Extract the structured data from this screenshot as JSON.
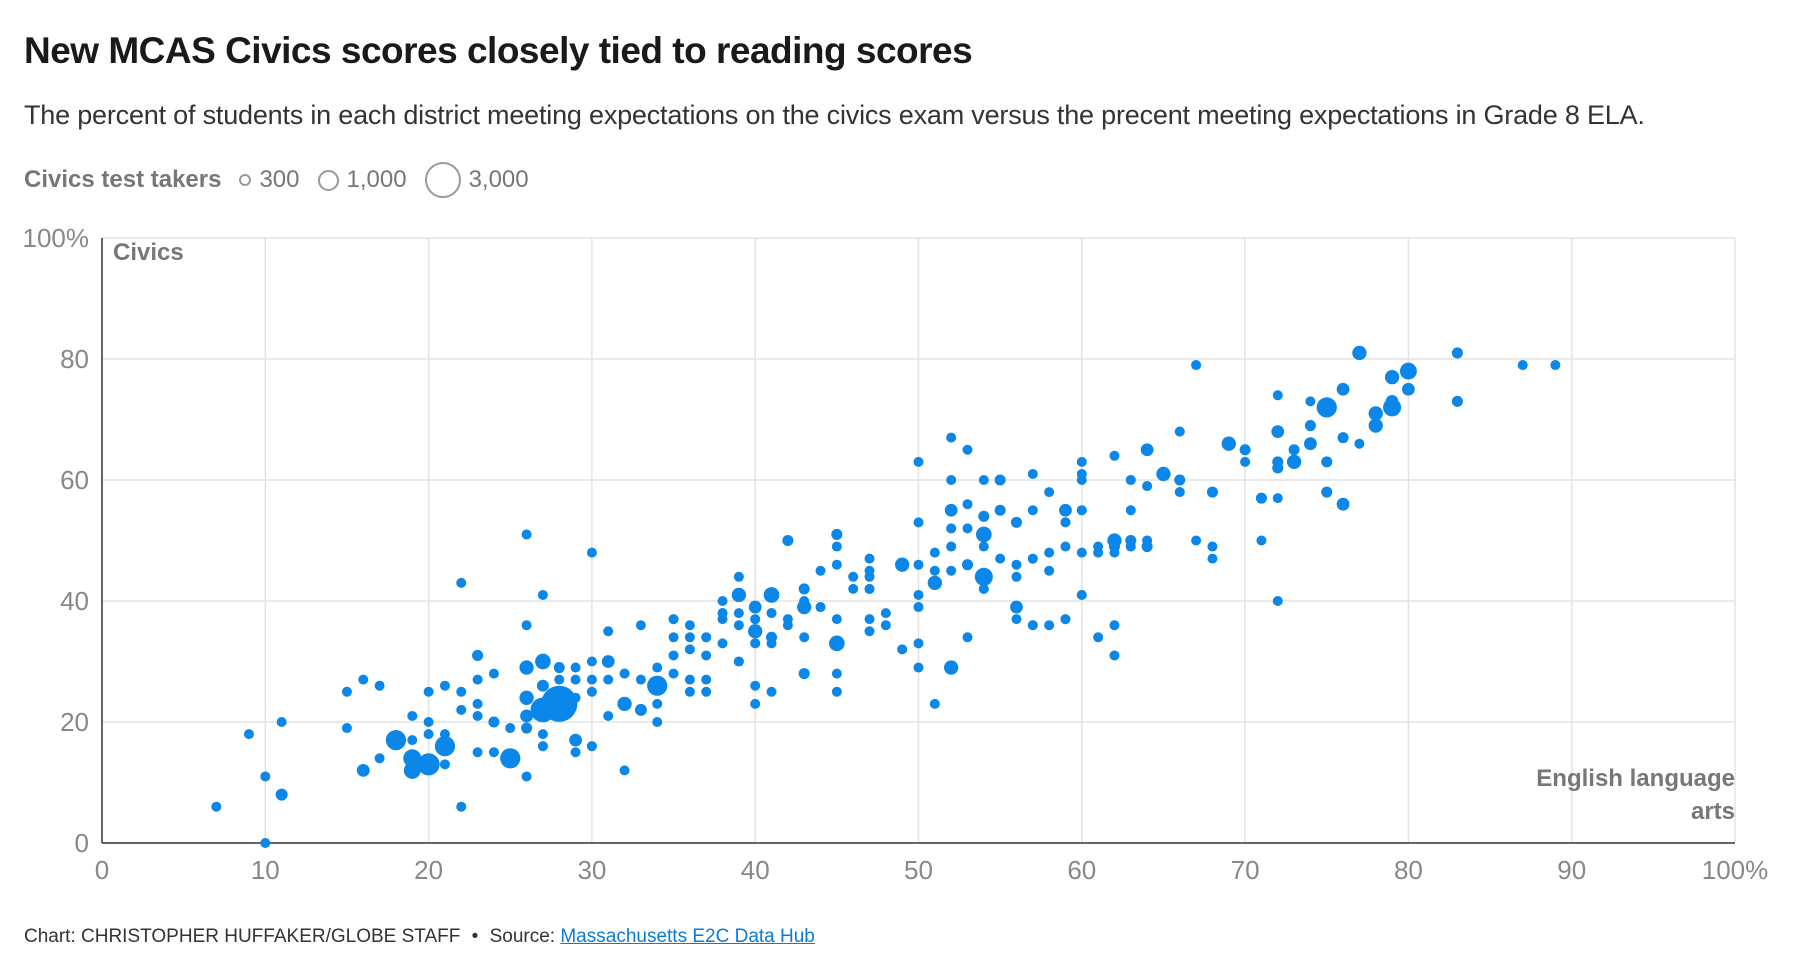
{
  "title": "New MCAS Civics scores closely tied to reading scores",
  "subtitle": "The percent of students in each district meeting expectations on the civics exam versus the precent meeting expectations in Grade 8 ELA.",
  "legend": {
    "title": "Civics test takers",
    "items": [
      {
        "label": "300",
        "value": 300
      },
      {
        "label": "1,000",
        "value": 1000
      },
      {
        "label": "3,000",
        "value": 3000
      }
    ]
  },
  "footer": {
    "credit": "Chart: CHRISTOPHER HUFFAKER/GLOBE STAFF",
    "separator": "•",
    "source_prefix": "Source:",
    "source_link": "Massachusetts E2C Data Hub"
  },
  "colors": {
    "point": "#0a87e8",
    "grid": "#e3e3e3",
    "axis": "#333333",
    "tick": "#888888"
  },
  "chart_data": {
    "type": "scatter",
    "title": "New MCAS Civics scores closely tied to reading scores",
    "xlabel": "English language arts",
    "ylabel": "Civics",
    "xlim": [
      0,
      100
    ],
    "ylim": [
      0,
      100
    ],
    "x_ticks": [
      "0",
      "10",
      "20",
      "30",
      "40",
      "50",
      "60",
      "70",
      "80",
      "90",
      "100%"
    ],
    "y_ticks": [
      "0",
      "20",
      "40",
      "60",
      "80",
      "100%"
    ],
    "x_tick_values": [
      0,
      10,
      20,
      30,
      40,
      50,
      60,
      70,
      80,
      90,
      100
    ],
    "y_tick_values": [
      0,
      20,
      40,
      60,
      80,
      100
    ],
    "grid": true,
    "size_variable": "Civics test takers",
    "points": [
      {
        "x": 7,
        "y": 6,
        "n": 150
      },
      {
        "x": 9,
        "y": 18,
        "n": 150
      },
      {
        "x": 10,
        "y": 11,
        "n": 150
      },
      {
        "x": 10,
        "y": 0,
        "n": 150
      },
      {
        "x": 11,
        "y": 20,
        "n": 120
      },
      {
        "x": 11,
        "y": 8,
        "n": 350
      },
      {
        "x": 15,
        "y": 25,
        "n": 150
      },
      {
        "x": 15,
        "y": 19,
        "n": 150
      },
      {
        "x": 16,
        "y": 27,
        "n": 120
      },
      {
        "x": 16,
        "y": 12,
        "n": 400
      },
      {
        "x": 17,
        "y": 26,
        "n": 150
      },
      {
        "x": 17,
        "y": 14,
        "n": 150
      },
      {
        "x": 18,
        "y": 17,
        "n": 1000
      },
      {
        "x": 19,
        "y": 21,
        "n": 150
      },
      {
        "x": 19,
        "y": 17,
        "n": 150
      },
      {
        "x": 19,
        "y": 14,
        "n": 800
      },
      {
        "x": 19,
        "y": 12,
        "n": 700
      },
      {
        "x": 20,
        "y": 25,
        "n": 120
      },
      {
        "x": 20,
        "y": 20,
        "n": 120
      },
      {
        "x": 20,
        "y": 18,
        "n": 150
      },
      {
        "x": 20,
        "y": 13,
        "n": 1200
      },
      {
        "x": 21,
        "y": 26,
        "n": 150
      },
      {
        "x": 21,
        "y": 18,
        "n": 150
      },
      {
        "x": 21,
        "y": 16,
        "n": 1000
      },
      {
        "x": 21,
        "y": 13,
        "n": 150
      },
      {
        "x": 22,
        "y": 43,
        "n": 120
      },
      {
        "x": 22,
        "y": 25,
        "n": 150
      },
      {
        "x": 22,
        "y": 22,
        "n": 200
      },
      {
        "x": 22,
        "y": 6,
        "n": 150
      },
      {
        "x": 23,
        "y": 31,
        "n": 300
      },
      {
        "x": 23,
        "y": 27,
        "n": 150
      },
      {
        "x": 23,
        "y": 23,
        "n": 150
      },
      {
        "x": 23,
        "y": 21,
        "n": 150
      },
      {
        "x": 23,
        "y": 15,
        "n": 150
      },
      {
        "x": 24,
        "y": 28,
        "n": 120
      },
      {
        "x": 24,
        "y": 20,
        "n": 300
      },
      {
        "x": 24,
        "y": 15,
        "n": 200
      },
      {
        "x": 25,
        "y": 19,
        "n": 150
      },
      {
        "x": 25,
        "y": 14,
        "n": 1000
      },
      {
        "x": 26,
        "y": 51,
        "n": 150
      },
      {
        "x": 26,
        "y": 36,
        "n": 200
      },
      {
        "x": 26,
        "y": 29,
        "n": 500
      },
      {
        "x": 26,
        "y": 24,
        "n": 500
      },
      {
        "x": 26,
        "y": 21,
        "n": 400
      },
      {
        "x": 26,
        "y": 19,
        "n": 300
      },
      {
        "x": 26,
        "y": 11,
        "n": 120
      },
      {
        "x": 27,
        "y": 41,
        "n": 120
      },
      {
        "x": 27,
        "y": 30,
        "n": 600
      },
      {
        "x": 27,
        "y": 26,
        "n": 350
      },
      {
        "x": 27,
        "y": 22,
        "n": 1500
      },
      {
        "x": 27,
        "y": 18,
        "n": 200
      },
      {
        "x": 27,
        "y": 16,
        "n": 250
      },
      {
        "x": 28,
        "y": 29,
        "n": 300
      },
      {
        "x": 28,
        "y": 27,
        "n": 150
      },
      {
        "x": 28,
        "y": 23,
        "n": 3200
      },
      {
        "x": 29,
        "y": 29,
        "n": 150
      },
      {
        "x": 29,
        "y": 27,
        "n": 200
      },
      {
        "x": 29,
        "y": 24,
        "n": 150
      },
      {
        "x": 29,
        "y": 17,
        "n": 400
      },
      {
        "x": 29,
        "y": 15,
        "n": 150
      },
      {
        "x": 30,
        "y": 48,
        "n": 150
      },
      {
        "x": 30,
        "y": 30,
        "n": 150
      },
      {
        "x": 30,
        "y": 27,
        "n": 150
      },
      {
        "x": 30,
        "y": 25,
        "n": 120
      },
      {
        "x": 30,
        "y": 16,
        "n": 250
      },
      {
        "x": 31,
        "y": 35,
        "n": 150
      },
      {
        "x": 31,
        "y": 30,
        "n": 400
      },
      {
        "x": 31,
        "y": 27,
        "n": 150
      },
      {
        "x": 31,
        "y": 21,
        "n": 150
      },
      {
        "x": 32,
        "y": 28,
        "n": 250
      },
      {
        "x": 32,
        "y": 23,
        "n": 500
      },
      {
        "x": 32,
        "y": 12,
        "n": 120
      },
      {
        "x": 33,
        "y": 36,
        "n": 120
      },
      {
        "x": 33,
        "y": 27,
        "n": 200
      },
      {
        "x": 33,
        "y": 22,
        "n": 350
      },
      {
        "x": 34,
        "y": 29,
        "n": 150
      },
      {
        "x": 34,
        "y": 26,
        "n": 1000
      },
      {
        "x": 34,
        "y": 23,
        "n": 150
      },
      {
        "x": 34,
        "y": 20,
        "n": 120
      },
      {
        "x": 35,
        "y": 37,
        "n": 250
      },
      {
        "x": 35,
        "y": 34,
        "n": 150
      },
      {
        "x": 35,
        "y": 31,
        "n": 150
      },
      {
        "x": 35,
        "y": 28,
        "n": 150
      },
      {
        "x": 36,
        "y": 36,
        "n": 200
      },
      {
        "x": 36,
        "y": 34,
        "n": 150
      },
      {
        "x": 36,
        "y": 32,
        "n": 150
      },
      {
        "x": 36,
        "y": 27,
        "n": 150
      },
      {
        "x": 36,
        "y": 25,
        "n": 150
      },
      {
        "x": 37,
        "y": 34,
        "n": 250
      },
      {
        "x": 37,
        "y": 31,
        "n": 200
      },
      {
        "x": 37,
        "y": 27,
        "n": 150
      },
      {
        "x": 37,
        "y": 25,
        "n": 150
      },
      {
        "x": 38,
        "y": 40,
        "n": 150
      },
      {
        "x": 38,
        "y": 38,
        "n": 250
      },
      {
        "x": 38,
        "y": 37,
        "n": 150
      },
      {
        "x": 38,
        "y": 33,
        "n": 120
      },
      {
        "x": 39,
        "y": 44,
        "n": 200
      },
      {
        "x": 39,
        "y": 41,
        "n": 500
      },
      {
        "x": 39,
        "y": 38,
        "n": 150
      },
      {
        "x": 39,
        "y": 36,
        "n": 200
      },
      {
        "x": 39,
        "y": 30,
        "n": 250
      },
      {
        "x": 40,
        "y": 39,
        "n": 400
      },
      {
        "x": 40,
        "y": 37,
        "n": 250
      },
      {
        "x": 40,
        "y": 35,
        "n": 500
      },
      {
        "x": 40,
        "y": 33,
        "n": 250
      },
      {
        "x": 40,
        "y": 26,
        "n": 150
      },
      {
        "x": 40,
        "y": 23,
        "n": 200
      },
      {
        "x": 41,
        "y": 41,
        "n": 600
      },
      {
        "x": 41,
        "y": 38,
        "n": 250
      },
      {
        "x": 41,
        "y": 34,
        "n": 300
      },
      {
        "x": 41,
        "y": 33,
        "n": 200
      },
      {
        "x": 41,
        "y": 25,
        "n": 120
      },
      {
        "x": 42,
        "y": 50,
        "n": 300
      },
      {
        "x": 42,
        "y": 37,
        "n": 200
      },
      {
        "x": 42,
        "y": 36,
        "n": 150
      },
      {
        "x": 43,
        "y": 42,
        "n": 300
      },
      {
        "x": 43,
        "y": 40,
        "n": 200
      },
      {
        "x": 43,
        "y": 39,
        "n": 500
      },
      {
        "x": 43,
        "y": 34,
        "n": 150
      },
      {
        "x": 43,
        "y": 28,
        "n": 300
      },
      {
        "x": 44,
        "y": 45,
        "n": 150
      },
      {
        "x": 44,
        "y": 39,
        "n": 250
      },
      {
        "x": 45,
        "y": 51,
        "n": 300
      },
      {
        "x": 45,
        "y": 49,
        "n": 120
      },
      {
        "x": 45,
        "y": 46,
        "n": 150
      },
      {
        "x": 45,
        "y": 37,
        "n": 120
      },
      {
        "x": 45,
        "y": 33,
        "n": 600
      },
      {
        "x": 45,
        "y": 28,
        "n": 120
      },
      {
        "x": 45,
        "y": 25,
        "n": 120
      },
      {
        "x": 46,
        "y": 44,
        "n": 150
      },
      {
        "x": 46,
        "y": 42,
        "n": 200
      },
      {
        "x": 47,
        "y": 47,
        "n": 150
      },
      {
        "x": 47,
        "y": 45,
        "n": 150
      },
      {
        "x": 47,
        "y": 44,
        "n": 200
      },
      {
        "x": 47,
        "y": 42,
        "n": 250
      },
      {
        "x": 47,
        "y": 37,
        "n": 200
      },
      {
        "x": 47,
        "y": 35,
        "n": 150
      },
      {
        "x": 48,
        "y": 38,
        "n": 150
      },
      {
        "x": 48,
        "y": 36,
        "n": 150
      },
      {
        "x": 49,
        "y": 46,
        "n": 500
      },
      {
        "x": 49,
        "y": 32,
        "n": 150
      },
      {
        "x": 50,
        "y": 63,
        "n": 150
      },
      {
        "x": 50,
        "y": 53,
        "n": 150
      },
      {
        "x": 50,
        "y": 46,
        "n": 150
      },
      {
        "x": 50,
        "y": 41,
        "n": 120
      },
      {
        "x": 50,
        "y": 39,
        "n": 150
      },
      {
        "x": 50,
        "y": 33,
        "n": 200
      },
      {
        "x": 50,
        "y": 29,
        "n": 120
      },
      {
        "x": 51,
        "y": 48,
        "n": 150
      },
      {
        "x": 51,
        "y": 45,
        "n": 150
      },
      {
        "x": 51,
        "y": 43,
        "n": 500
      },
      {
        "x": 51,
        "y": 23,
        "n": 150
      },
      {
        "x": 52,
        "y": 67,
        "n": 120
      },
      {
        "x": 52,
        "y": 60,
        "n": 150
      },
      {
        "x": 52,
        "y": 55,
        "n": 400
      },
      {
        "x": 52,
        "y": 52,
        "n": 250
      },
      {
        "x": 52,
        "y": 49,
        "n": 150
      },
      {
        "x": 52,
        "y": 45,
        "n": 200
      },
      {
        "x": 52,
        "y": 29,
        "n": 500
      },
      {
        "x": 53,
        "y": 65,
        "n": 120
      },
      {
        "x": 53,
        "y": 56,
        "n": 200
      },
      {
        "x": 53,
        "y": 52,
        "n": 200
      },
      {
        "x": 53,
        "y": 46,
        "n": 300
      },
      {
        "x": 53,
        "y": 34,
        "n": 150
      },
      {
        "x": 54,
        "y": 60,
        "n": 150
      },
      {
        "x": 54,
        "y": 54,
        "n": 300
      },
      {
        "x": 54,
        "y": 51,
        "n": 600
      },
      {
        "x": 54,
        "y": 49,
        "n": 150
      },
      {
        "x": 54,
        "y": 44,
        "n": 800
      },
      {
        "x": 54,
        "y": 42,
        "n": 250
      },
      {
        "x": 55,
        "y": 60,
        "n": 300
      },
      {
        "x": 55,
        "y": 55,
        "n": 300
      },
      {
        "x": 55,
        "y": 47,
        "n": 150
      },
      {
        "x": 56,
        "y": 53,
        "n": 300
      },
      {
        "x": 56,
        "y": 46,
        "n": 200
      },
      {
        "x": 56,
        "y": 44,
        "n": 200
      },
      {
        "x": 56,
        "y": 39,
        "n": 400
      },
      {
        "x": 56,
        "y": 37,
        "n": 200
      },
      {
        "x": 57,
        "y": 61,
        "n": 150
      },
      {
        "x": 57,
        "y": 55,
        "n": 200
      },
      {
        "x": 57,
        "y": 47,
        "n": 250
      },
      {
        "x": 57,
        "y": 36,
        "n": 250
      },
      {
        "x": 58,
        "y": 58,
        "n": 150
      },
      {
        "x": 58,
        "y": 48,
        "n": 200
      },
      {
        "x": 58,
        "y": 45,
        "n": 200
      },
      {
        "x": 58,
        "y": 36,
        "n": 200
      },
      {
        "x": 59,
        "y": 55,
        "n": 400
      },
      {
        "x": 59,
        "y": 53,
        "n": 250
      },
      {
        "x": 59,
        "y": 49,
        "n": 150
      },
      {
        "x": 59,
        "y": 37,
        "n": 250
      },
      {
        "x": 60,
        "y": 63,
        "n": 200
      },
      {
        "x": 60,
        "y": 61,
        "n": 200
      },
      {
        "x": 60,
        "y": 60,
        "n": 200
      },
      {
        "x": 60,
        "y": 55,
        "n": 250
      },
      {
        "x": 60,
        "y": 48,
        "n": 200
      },
      {
        "x": 60,
        "y": 41,
        "n": 250
      },
      {
        "x": 61,
        "y": 49,
        "n": 150
      },
      {
        "x": 61,
        "y": 48,
        "n": 200
      },
      {
        "x": 61,
        "y": 34,
        "n": 150
      },
      {
        "x": 62,
        "y": 64,
        "n": 150
      },
      {
        "x": 62,
        "y": 50,
        "n": 500
      },
      {
        "x": 62,
        "y": 49,
        "n": 300
      },
      {
        "x": 62,
        "y": 48,
        "n": 200
      },
      {
        "x": 62,
        "y": 36,
        "n": 150
      },
      {
        "x": 62,
        "y": 31,
        "n": 120
      },
      {
        "x": 63,
        "y": 60,
        "n": 250
      },
      {
        "x": 63,
        "y": 55,
        "n": 200
      },
      {
        "x": 63,
        "y": 50,
        "n": 300
      },
      {
        "x": 63,
        "y": 49,
        "n": 250
      },
      {
        "x": 64,
        "y": 65,
        "n": 400
      },
      {
        "x": 64,
        "y": 59,
        "n": 250
      },
      {
        "x": 64,
        "y": 50,
        "n": 250
      },
      {
        "x": 64,
        "y": 49,
        "n": 300
      },
      {
        "x": 65,
        "y": 61,
        "n": 500
      },
      {
        "x": 66,
        "y": 68,
        "n": 250
      },
      {
        "x": 66,
        "y": 60,
        "n": 300
      },
      {
        "x": 66,
        "y": 58,
        "n": 250
      },
      {
        "x": 67,
        "y": 79,
        "n": 250
      },
      {
        "x": 67,
        "y": 50,
        "n": 150
      },
      {
        "x": 68,
        "y": 58,
        "n": 300
      },
      {
        "x": 68,
        "y": 49,
        "n": 150
      },
      {
        "x": 68,
        "y": 47,
        "n": 200
      },
      {
        "x": 69,
        "y": 66,
        "n": 500
      },
      {
        "x": 70,
        "y": 65,
        "n": 300
      },
      {
        "x": 70,
        "y": 63,
        "n": 150
      },
      {
        "x": 71,
        "y": 57,
        "n": 300
      },
      {
        "x": 71,
        "y": 50,
        "n": 150
      },
      {
        "x": 72,
        "y": 74,
        "n": 150
      },
      {
        "x": 72,
        "y": 68,
        "n": 400
      },
      {
        "x": 72,
        "y": 63,
        "n": 300
      },
      {
        "x": 72,
        "y": 62,
        "n": 300
      },
      {
        "x": 72,
        "y": 57,
        "n": 200
      },
      {
        "x": 72,
        "y": 40,
        "n": 150
      },
      {
        "x": 73,
        "y": 65,
        "n": 300
      },
      {
        "x": 73,
        "y": 63,
        "n": 500
      },
      {
        "x": 74,
        "y": 73,
        "n": 150
      },
      {
        "x": 74,
        "y": 69,
        "n": 300
      },
      {
        "x": 74,
        "y": 66,
        "n": 400
      },
      {
        "x": 75,
        "y": 72,
        "n": 1000
      },
      {
        "x": 75,
        "y": 63,
        "n": 300
      },
      {
        "x": 75,
        "y": 58,
        "n": 300
      },
      {
        "x": 76,
        "y": 75,
        "n": 400
      },
      {
        "x": 76,
        "y": 67,
        "n": 300
      },
      {
        "x": 76,
        "y": 56,
        "n": 400
      },
      {
        "x": 77,
        "y": 81,
        "n": 500
      },
      {
        "x": 77,
        "y": 66,
        "n": 200
      },
      {
        "x": 78,
        "y": 71,
        "n": 500
      },
      {
        "x": 78,
        "y": 69,
        "n": 500
      },
      {
        "x": 79,
        "y": 77,
        "n": 500
      },
      {
        "x": 79,
        "y": 73,
        "n": 400
      },
      {
        "x": 79,
        "y": 72,
        "n": 800
      },
      {
        "x": 80,
        "y": 78,
        "n": 700
      },
      {
        "x": 80,
        "y": 75,
        "n": 400
      },
      {
        "x": 83,
        "y": 81,
        "n": 300
      },
      {
        "x": 83,
        "y": 73,
        "n": 300
      },
      {
        "x": 87,
        "y": 79,
        "n": 150
      },
      {
        "x": 89,
        "y": 79,
        "n": 150
      }
    ]
  }
}
